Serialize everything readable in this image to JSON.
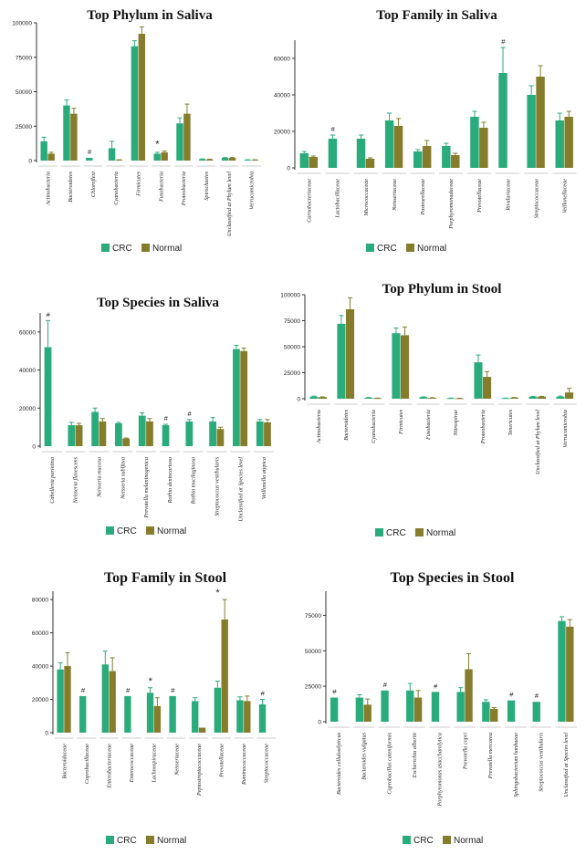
{
  "colors": {
    "crc": "#2aab7c",
    "normal": "#857d2c",
    "axis": "#333333",
    "err": "#555555"
  },
  "legend": {
    "crc": "CRC",
    "normal": "Normal"
  },
  "chart_data": [
    {
      "type": "bar",
      "title": "Top Phylum in Saliva",
      "categories": [
        "Actinobacteria",
        "Bacteroidetes",
        "Chloroflexi",
        "Cyanobacteria",
        "Firmicutes",
        "Fusobacteria",
        "Proteobacteria",
        "Spirochaetes",
        "Unclassified at Phylum level",
        "Verrucomicrobia"
      ],
      "series": [
        {
          "name": "CRC",
          "values": [
            14000,
            40000,
            2000,
            9000,
            83000,
            5000,
            27000,
            1000,
            2000,
            500
          ],
          "errors": [
            3000,
            4000,
            0,
            5000,
            4000,
            1000,
            4000,
            200,
            200,
            100
          ]
        },
        {
          "name": "Normal",
          "values": [
            5000,
            34000,
            null,
            500,
            92000,
            6000,
            34000,
            800,
            2000,
            500
          ],
          "errors": [
            1000,
            4000,
            0,
            100,
            5000,
            1000,
            7000,
            200,
            200,
            100
          ]
        }
      ],
      "ylim": [
        0,
        100000
      ],
      "yticks": [
        0,
        25000,
        50000,
        75000,
        100000
      ],
      "annotations": [
        {
          "category": 2,
          "text": "#"
        },
        {
          "category": 5,
          "text": "*"
        }
      ]
    },
    {
      "type": "bar",
      "title": "Top Family in Saliva",
      "categories": [
        "Carnobacteriaceae",
        "Lactobacillaceae",
        "Micrococcaceae",
        "Neisseriaceae",
        "Pasteurellaceae",
        "Porphyromonadaceae",
        "Prevotellaceae",
        "Rivulariaceae",
        "Streptococcaceae",
        "Veillonellaceae"
      ],
      "series": [
        {
          "name": "CRC",
          "values": [
            8000,
            16000,
            16000,
            26000,
            9000,
            12000,
            28000,
            52000,
            40000,
            26000
          ],
          "errors": [
            1000,
            2000,
            2000,
            4000,
            1000,
            1500,
            3000,
            14000,
            5000,
            4000
          ]
        },
        {
          "name": "Normal",
          "values": [
            6000,
            null,
            5000,
            23000,
            12000,
            7000,
            22000,
            null,
            50000,
            28000
          ],
          "errors": [
            500,
            0,
            500,
            4000,
            3000,
            1000,
            3000,
            0,
            6000,
            3000
          ]
        }
      ],
      "ylim": [
        0,
        70000
      ],
      "yticks": [
        0,
        20000,
        40000,
        60000
      ],
      "annotations": [
        {
          "category": 1,
          "text": "#"
        },
        {
          "category": 7,
          "text": "#"
        }
      ]
    },
    {
      "type": "bar",
      "title": "Top Species in Saliva",
      "categories": [
        "Cabelleria parietina",
        "Neisseria flavescens",
        "Neisseria mucosa",
        "Neisseria sublfava",
        "Prevotella melaninogenica",
        "Rothia dentocariosa",
        "Rothia mucilaginosa",
        "Streptococcus vestibularis",
        "Unclassified at Species level",
        "Veillonella atypica"
      ],
      "series": [
        {
          "name": "CRC",
          "values": [
            52000,
            11000,
            18000,
            12000,
            16000,
            11000,
            13000,
            13000,
            51000,
            13000
          ],
          "errors": [
            14000,
            1500,
            2000,
            500,
            1500,
            500,
            1000,
            2000,
            2000,
            1000
          ]
        },
        {
          "name": "Normal",
          "values": [
            null,
            11000,
            13000,
            4000,
            13000,
            null,
            null,
            9000,
            50000,
            12500
          ],
          "errors": [
            0,
            1000,
            1500,
            300,
            1500,
            0,
            0,
            1000,
            1500,
            1500
          ]
        }
      ],
      "ylim": [
        0,
        70000
      ],
      "yticks": [
        0,
        20000,
        40000,
        60000
      ],
      "annotations": [
        {
          "category": 0,
          "text": "#"
        },
        {
          "category": 5,
          "text": "#"
        },
        {
          "category": 6,
          "text": "#"
        }
      ]
    },
    {
      "type": "bar",
      "title": "Top Phylum in Stool",
      "categories": [
        "Actinobacteria",
        "Bacteroidetes",
        "Cyanobacteria",
        "Firmicutes",
        "Fusobacteria",
        "Nitrospirae",
        "Proteobacteria",
        "Tenericutes",
        "Unclassified at Phylum level",
        "Verrucomicrobia"
      ],
      "series": [
        {
          "name": "CRC",
          "values": [
            2000,
            72000,
            1000,
            63000,
            1500,
            500,
            35000,
            500,
            2000,
            2000
          ],
          "errors": [
            500,
            8000,
            200,
            5000,
            300,
            100,
            7000,
            100,
            300,
            500
          ]
        },
        {
          "name": "Normal",
          "values": [
            1500,
            86000,
            500,
            61000,
            800,
            400,
            21000,
            1000,
            2000,
            6000
          ],
          "errors": [
            300,
            11000,
            100,
            8000,
            200,
            100,
            5000,
            200,
            300,
            4000
          ]
        }
      ],
      "ylim": [
        0,
        100000
      ],
      "yticks": [
        0,
        25000,
        50000,
        75000,
        100000
      ],
      "annotations": []
    },
    {
      "type": "bar",
      "title": "Top Family in Stool",
      "categories": [
        "Bacteroidaceae",
        "Coprobacillaceae",
        "Enterobacteriaceae",
        "Enterococcaceae",
        "Lachnospiraceae",
        "Neisseriaceae",
        "Peptostreptococcaceae",
        "Prevotellaceae",
        "Ruminococcaceae",
        "Streptococcaceae"
      ],
      "series": [
        {
          "name": "CRC",
          "values": [
            38000,
            22000,
            41000,
            22000,
            24000,
            22000,
            19000,
            27000,
            19500,
            17000
          ],
          "errors": [
            4000,
            0,
            8000,
            0,
            3000,
            0,
            2000,
            4000,
            2000,
            3000
          ]
        },
        {
          "name": "Normal",
          "values": [
            40000,
            null,
            37000,
            null,
            16000,
            null,
            3000,
            68000,
            19000,
            null
          ],
          "errors": [
            8000,
            0,
            8000,
            0,
            5000,
            0,
            0,
            12000,
            3000,
            0
          ]
        }
      ],
      "ylim": [
        0,
        85000
      ],
      "yticks": [
        0,
        20000,
        40000,
        60000,
        80000
      ],
      "annotations": [
        {
          "category": 1,
          "text": "#"
        },
        {
          "category": 3,
          "text": "#"
        },
        {
          "category": 4,
          "text": "*"
        },
        {
          "category": 5,
          "text": "#"
        },
        {
          "category": 7,
          "text": "*"
        },
        {
          "category": 9,
          "text": "#"
        }
      ]
    },
    {
      "type": "bar",
      "title": "Top Species in Stool",
      "categories": [
        "Bacteroides cellulosilyticus",
        "Bacteroides vulgatus",
        "Coprobacillus cateniformis",
        "Escherichia albertii",
        "Porphyromonas asaccharolytica",
        "Prevotella copri",
        "Prevotella mercorea",
        "Sphingobacterium hanbaeae",
        "Streptococcus vestibularis",
        "Unclassified at Species level"
      ],
      "series": [
        {
          "name": "CRC",
          "values": [
            17000,
            17000,
            22000,
            22000,
            21000,
            21000,
            14000,
            15000,
            14000,
            71000
          ],
          "errors": [
            0,
            2000,
            0,
            5000,
            0,
            3000,
            1500,
            0,
            0,
            3000
          ]
        },
        {
          "name": "Normal",
          "values": [
            null,
            12000,
            null,
            17000,
            null,
            37000,
            9000,
            null,
            null,
            67000
          ],
          "errors": [
            0,
            4000,
            0,
            5000,
            0,
            11000,
            1000,
            0,
            0,
            5000
          ]
        }
      ],
      "ylim": [
        0,
        92000
      ],
      "yticks": [
        0,
        25000,
        50000,
        75000
      ],
      "annotations": [
        {
          "category": 0,
          "text": "#"
        },
        {
          "category": 2,
          "text": "#"
        },
        {
          "category": 4,
          "text": "#"
        },
        {
          "category": 7,
          "text": "#"
        },
        {
          "category": 8,
          "text": "#"
        }
      ]
    }
  ]
}
